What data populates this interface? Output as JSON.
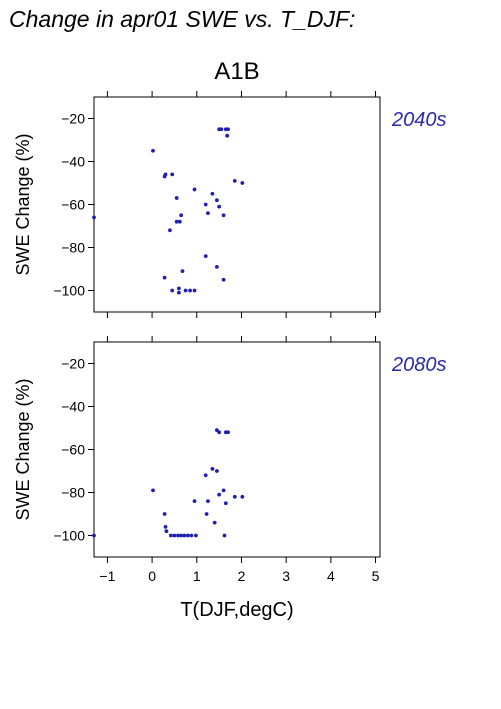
{
  "title": "Change in apr01 SWE vs. T_DJF:",
  "subtitle": "A1B",
  "colors": {
    "points": "#2020b0",
    "panel_label": "#2a2aa8",
    "axes": "#000000"
  },
  "chart_data": [
    {
      "type": "scatter",
      "panel_label": "2040s",
      "xlabel": "T(DJF,degC)",
      "ylabel": "SWE Change (%)",
      "xlim": [
        -1.3,
        5.1
      ],
      "ylim": [
        -110,
        -10
      ],
      "x_ticks": [
        -1,
        0,
        1,
        2,
        3,
        4,
        5
      ],
      "y_ticks": [
        -100,
        -80,
        -60,
        -40,
        -20
      ],
      "grid": false,
      "points": [
        {
          "x": -1.3,
          "y": -66
        },
        {
          "x": 0.02,
          "y": -35
        },
        {
          "x": 0.28,
          "y": -47
        },
        {
          "x": 0.3,
          "y": -46
        },
        {
          "x": 0.45,
          "y": -46
        },
        {
          "x": 0.55,
          "y": -57
        },
        {
          "x": 0.55,
          "y": -68
        },
        {
          "x": 0.62,
          "y": -68
        },
        {
          "x": 0.65,
          "y": -65
        },
        {
          "x": 0.4,
          "y": -72
        },
        {
          "x": 0.95,
          "y": -53
        },
        {
          "x": 0.28,
          "y": -94
        },
        {
          "x": 0.68,
          "y": -91
        },
        {
          "x": 0.45,
          "y": -100
        },
        {
          "x": 0.6,
          "y": -99
        },
        {
          "x": 0.6,
          "y": -101
        },
        {
          "x": 0.75,
          "y": -100
        },
        {
          "x": 0.85,
          "y": -100
        },
        {
          "x": 0.95,
          "y": -100
        },
        {
          "x": 1.2,
          "y": -60
        },
        {
          "x": 1.25,
          "y": -64
        },
        {
          "x": 1.2,
          "y": -84
        },
        {
          "x": 1.35,
          "y": -55
        },
        {
          "x": 1.45,
          "y": -58
        },
        {
          "x": 1.5,
          "y": -61
        },
        {
          "x": 1.6,
          "y": -65
        },
        {
          "x": 1.45,
          "y": -89
        },
        {
          "x": 1.6,
          "y": -95
        },
        {
          "x": 1.5,
          "y": -25
        },
        {
          "x": 1.55,
          "y": -25
        },
        {
          "x": 1.65,
          "y": -25
        },
        {
          "x": 1.7,
          "y": -25
        },
        {
          "x": 1.68,
          "y": -28
        },
        {
          "x": 1.85,
          "y": -49
        },
        {
          "x": 2.02,
          "y": -50
        }
      ]
    },
    {
      "type": "scatter",
      "panel_label": "2080s",
      "xlabel": "T(DJF,degC)",
      "ylabel": "SWE Change (%)",
      "xlim": [
        -1.3,
        5.1
      ],
      "ylim": [
        -110,
        -10
      ],
      "x_ticks": [
        -1,
        0,
        1,
        2,
        3,
        4,
        5
      ],
      "y_ticks": [
        -100,
        -80,
        -60,
        -40,
        -20
      ],
      "grid": false,
      "points": [
        {
          "x": -1.3,
          "y": -100
        },
        {
          "x": 0.02,
          "y": -79
        },
        {
          "x": 0.28,
          "y": -90
        },
        {
          "x": 0.3,
          "y": -96
        },
        {
          "x": 0.32,
          "y": -98
        },
        {
          "x": 0.42,
          "y": -100
        },
        {
          "x": 0.5,
          "y": -100
        },
        {
          "x": 0.58,
          "y": -100
        },
        {
          "x": 0.65,
          "y": -100
        },
        {
          "x": 0.72,
          "y": -100
        },
        {
          "x": 0.8,
          "y": -100
        },
        {
          "x": 0.88,
          "y": -100
        },
        {
          "x": 0.98,
          "y": -100
        },
        {
          "x": 0.95,
          "y": -84
        },
        {
          "x": 1.2,
          "y": -72
        },
        {
          "x": 1.22,
          "y": -90
        },
        {
          "x": 1.25,
          "y": -84
        },
        {
          "x": 1.35,
          "y": -69
        },
        {
          "x": 1.45,
          "y": -70
        },
        {
          "x": 1.4,
          "y": -94
        },
        {
          "x": 1.5,
          "y": -81
        },
        {
          "x": 1.6,
          "y": -79
        },
        {
          "x": 1.65,
          "y": -85
        },
        {
          "x": 1.62,
          "y": -100
        },
        {
          "x": 1.45,
          "y": -51
        },
        {
          "x": 1.5,
          "y": -52
        },
        {
          "x": 1.65,
          "y": -52
        },
        {
          "x": 1.7,
          "y": -52
        },
        {
          "x": 1.85,
          "y": -82
        },
        {
          "x": 2.02,
          "y": -82
        }
      ]
    }
  ]
}
